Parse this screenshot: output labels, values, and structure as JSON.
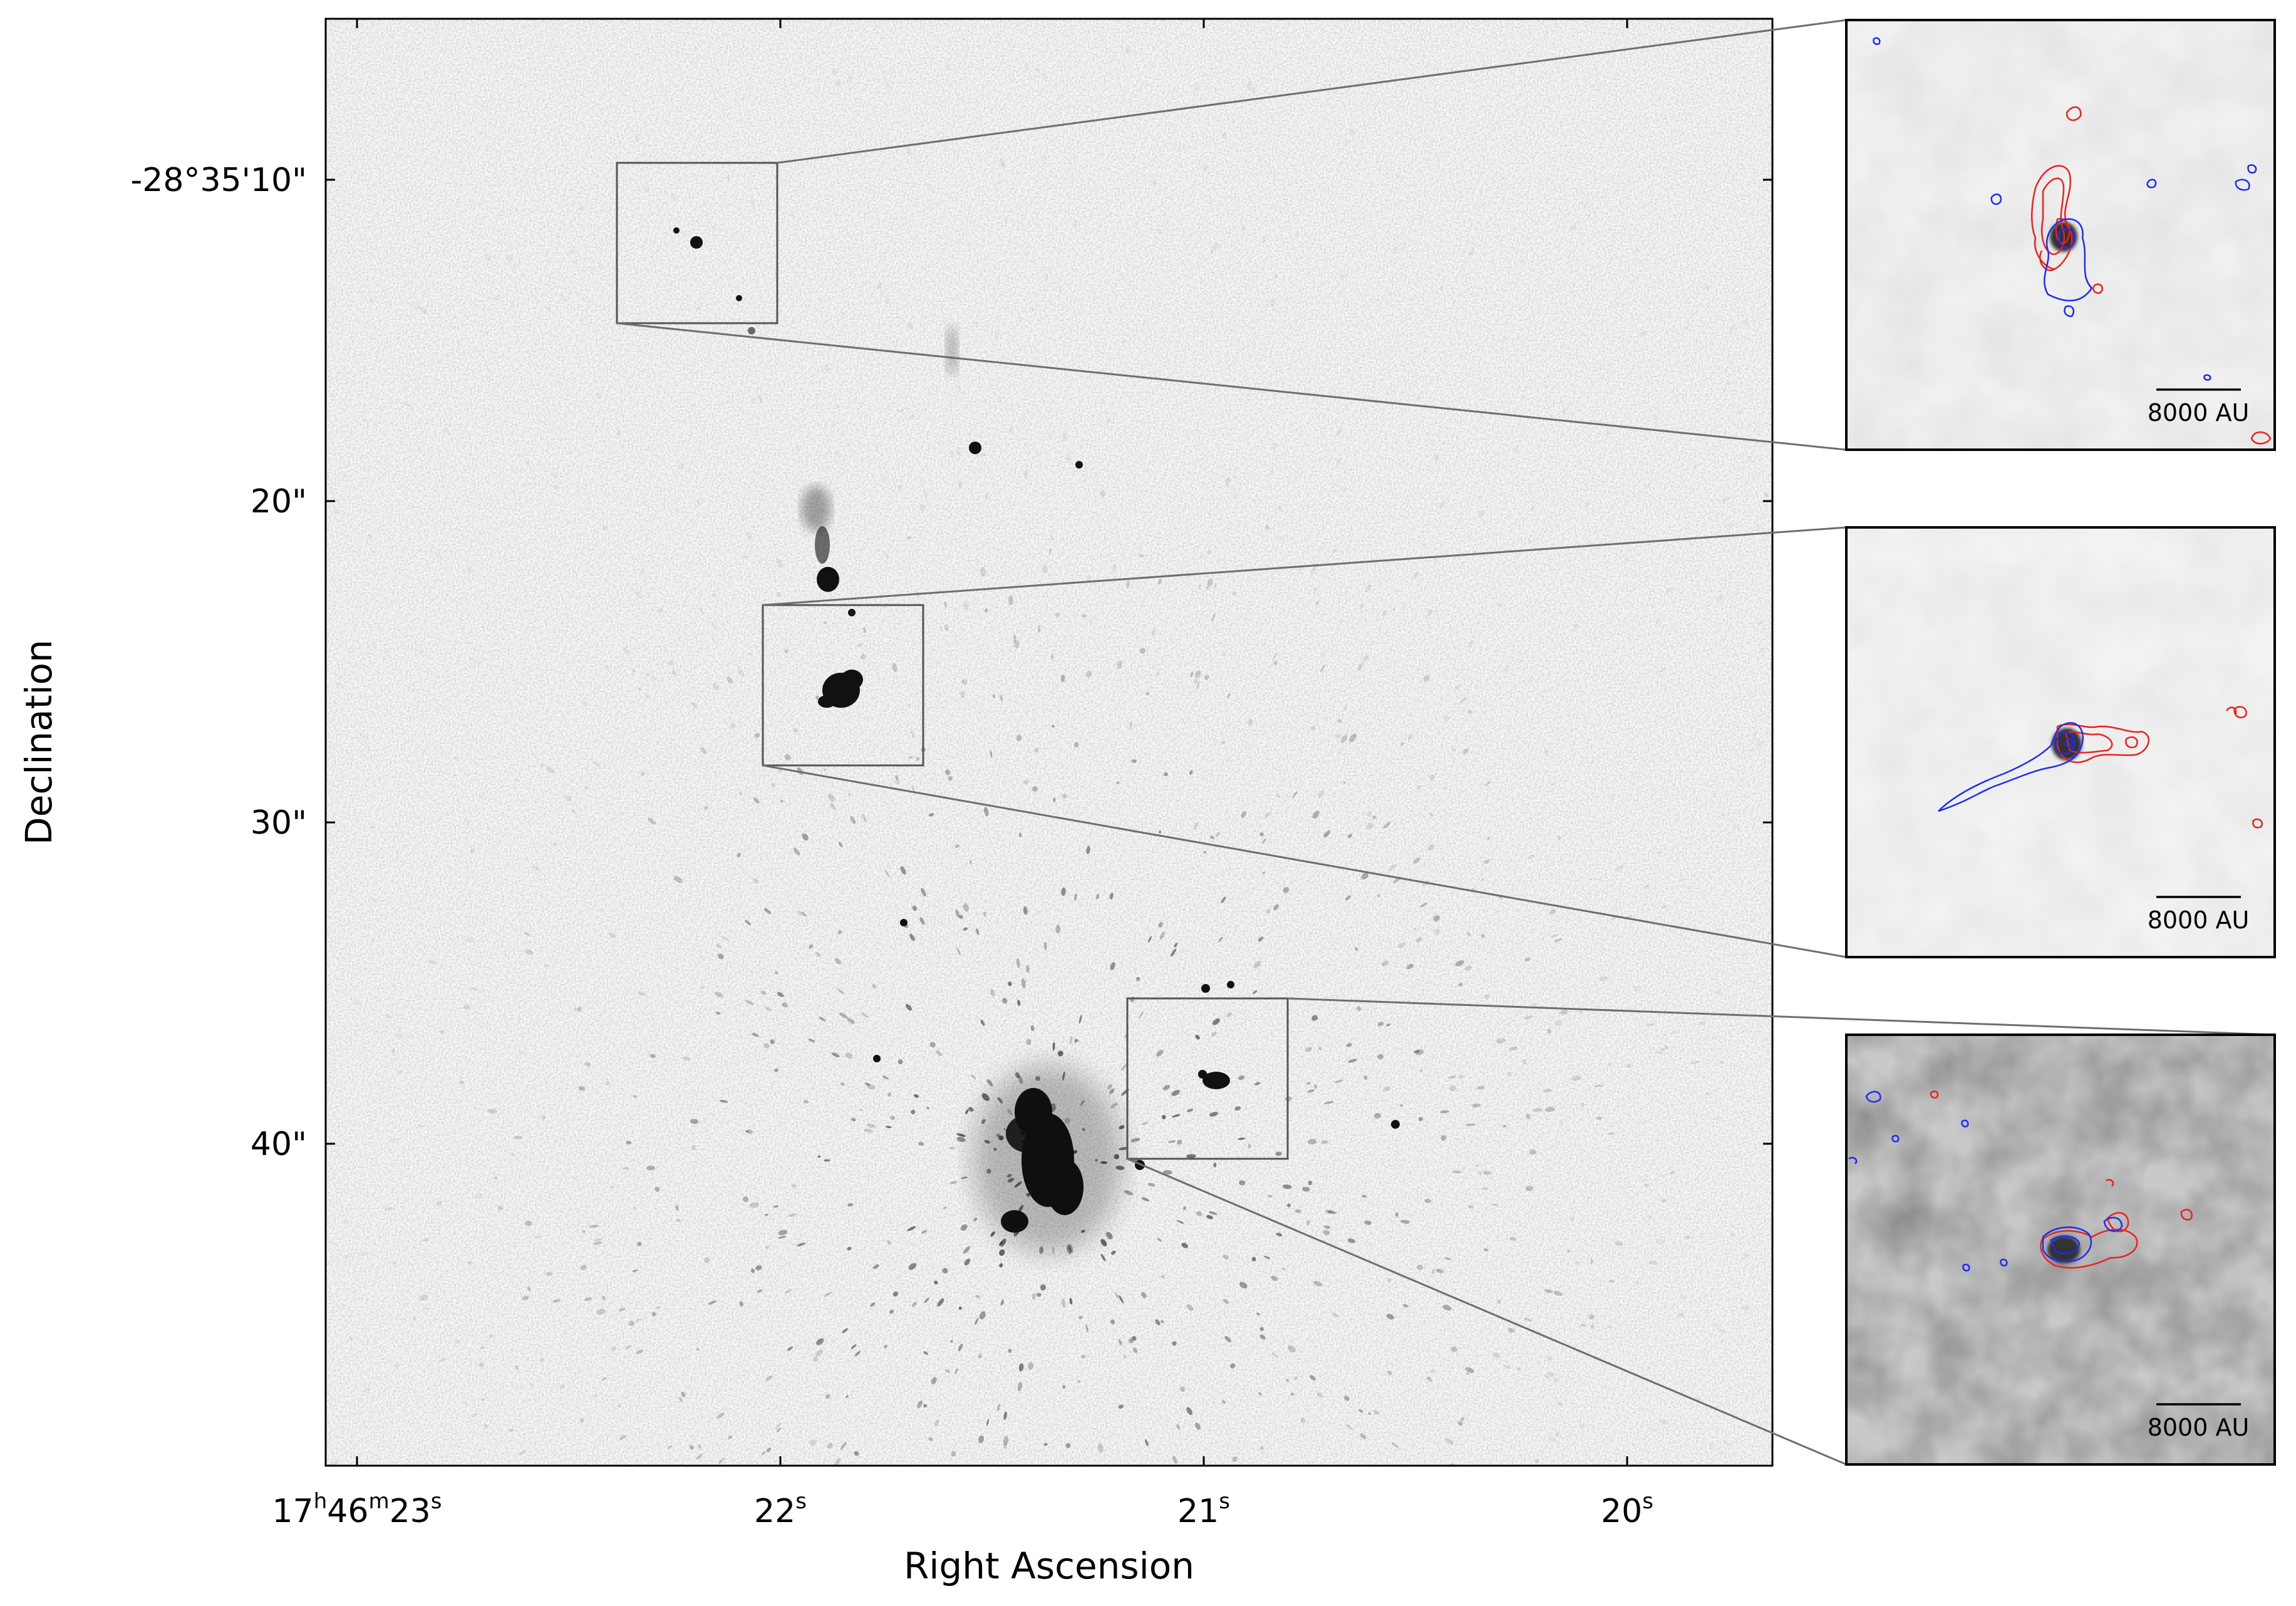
{
  "figure": {
    "main_panel": {
      "x_axis_title": "Right Ascension",
      "y_axis_title": "Declination",
      "x_ticks": [
        {
          "base": "17",
          "sup1": "h",
          "mid": "46",
          "sup2": "m",
          "end": "23",
          "sup3": "s"
        },
        {
          "base": "22",
          "sup1": "s"
        },
        {
          "base": "21",
          "sup1": "s"
        },
        {
          "base": "20",
          "sup1": "s"
        }
      ],
      "y_ticks": [
        "-28°35'10\"",
        "20\"",
        "30\"",
        "40\""
      ]
    },
    "insets": [
      {
        "scale_bar_label": "8000 AU"
      },
      {
        "scale_bar_label": "8000 AU"
      },
      {
        "scale_bar_label": "8000 AU"
      }
    ],
    "colors": {
      "image_background": "#f2f2f2",
      "emission": "#111111",
      "contour_red": "#e8231e",
      "contour_blue": "#1d2cf2",
      "zoom_lines": "#6e6e6e"
    }
  }
}
